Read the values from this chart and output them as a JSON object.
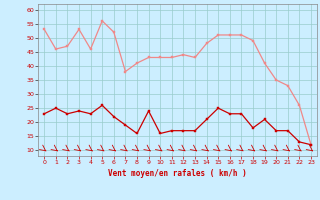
{
  "x": [
    0,
    1,
    2,
    3,
    4,
    5,
    6,
    7,
    8,
    9,
    10,
    11,
    12,
    13,
    14,
    15,
    16,
    17,
    18,
    19,
    20,
    21,
    22,
    23
  ],
  "rafales": [
    53,
    46,
    47,
    53,
    46,
    56,
    52,
    38,
    41,
    43,
    43,
    43,
    44,
    43,
    48,
    51,
    51,
    51,
    49,
    41,
    35,
    33,
    26,
    12
  ],
  "moyen": [
    23,
    25,
    23,
    24,
    23,
    26,
    22,
    19,
    16,
    24,
    16,
    17,
    17,
    17,
    21,
    25,
    23,
    23,
    18,
    21,
    17,
    17,
    13,
    12
  ],
  "xlabel": "Vent moyen/en rafales ( km/h )",
  "bg_color": "#cceeff",
  "grid_color": "#99cccc",
  "line_color_rafales": "#f08888",
  "line_color_moyen": "#cc0000",
  "ylim": [
    8,
    62
  ],
  "xlim": [
    -0.5,
    23.5
  ],
  "yticks": [
    10,
    15,
    20,
    25,
    30,
    35,
    40,
    45,
    50,
    55,
    60
  ],
  "xticks": [
    0,
    1,
    2,
    3,
    4,
    5,
    6,
    7,
    8,
    9,
    10,
    11,
    12,
    13,
    14,
    15,
    16,
    17,
    18,
    19,
    20,
    21,
    22,
    23
  ],
  "xtick_labels": [
    "0",
    "1",
    "2",
    "3",
    "4",
    "5",
    "6",
    "7",
    "8",
    "9",
    "10",
    "11",
    "12",
    "13",
    "14",
    "15",
    "16",
    "17",
    "18",
    "19",
    "20",
    "21",
    "22",
    "23"
  ]
}
